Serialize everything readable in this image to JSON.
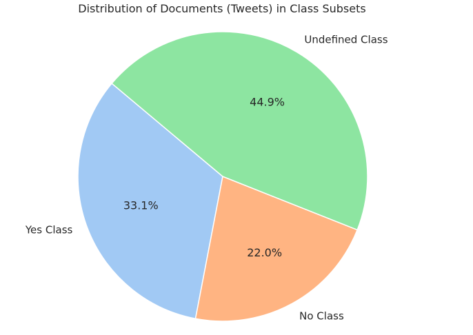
{
  "chart_data": {
    "type": "pie",
    "title": "Distribution of Documents (Tweets) in Class Subsets",
    "slices": [
      {
        "label": "Yes Class",
        "value": 33.1,
        "pct_label": "33.1%",
        "color": "#a1c9f4"
      },
      {
        "label": "No Class",
        "value": 22.0,
        "pct_label": "22.0%",
        "color": "#ffb482"
      },
      {
        "label": "Undefined Class",
        "value": 44.9,
        "pct_label": "44.9%",
        "color": "#8de5a1"
      }
    ],
    "start_angle_deg": 140,
    "direction": "counterclockwise",
    "edge_color": "#ffffff"
  }
}
